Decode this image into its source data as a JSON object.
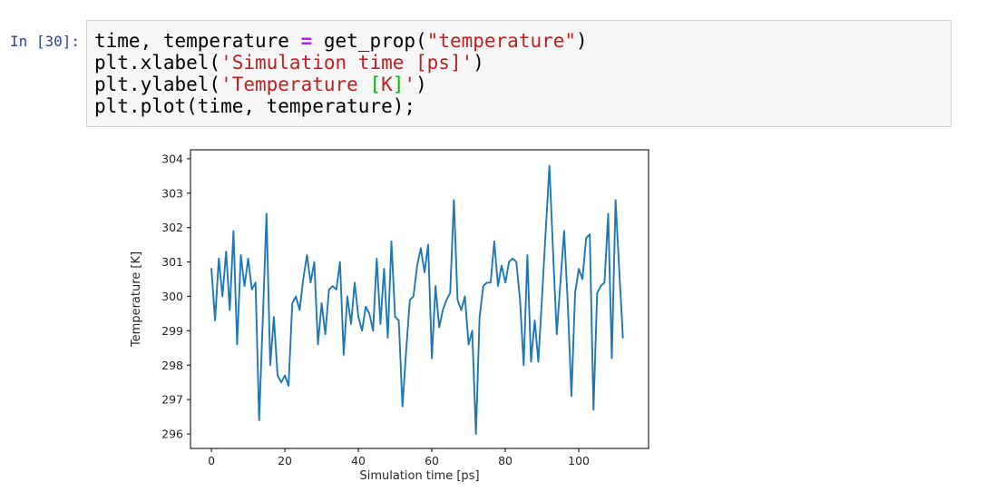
{
  "cell": {
    "prompt": "In [30]:",
    "prompt_color": "#303F9F",
    "editor_bg": "#f7f7f7",
    "editor_border": "#cfcfcf",
    "syntax_colors": {
      "plain": "#000000",
      "operator": "#AA22FF",
      "string": "#BA2121",
      "bracket": "#00bb00"
    },
    "code_lines": [
      [
        {
          "t": "time, temperature ",
          "c": "plain"
        },
        {
          "t": "=",
          "c": "operator"
        },
        {
          "t": " get_prop(",
          "c": "plain"
        },
        {
          "t": "\"temperature\"",
          "c": "string"
        },
        {
          "t": ")",
          "c": "plain"
        }
      ],
      [
        {
          "t": "plt.xlabel(",
          "c": "plain"
        },
        {
          "t": "'Simulation time [ps]'",
          "c": "string"
        },
        {
          "t": ")",
          "c": "plain"
        }
      ],
      [
        {
          "t": "plt.ylabel(",
          "c": "plain"
        },
        {
          "t": "'Temperature ",
          "c": "string"
        },
        {
          "t": "[",
          "c": "bracket"
        },
        {
          "t": "K",
          "c": "string"
        },
        {
          "t": "]",
          "c": "bracket"
        },
        {
          "t": "'",
          "c": "string"
        },
        {
          "t": ")",
          "c": "plain"
        }
      ],
      [
        {
          "t": "plt.plot(time, temperature);",
          "c": "plain"
        }
      ]
    ]
  },
  "chart_data": {
    "type": "line",
    "title": "",
    "xlabel": "Simulation time [ps]",
    "ylabel": "Temperature [K]",
    "legend": null,
    "grid": false,
    "line_color": "#1f77b4",
    "axis_color": "#262626",
    "xlim": [
      -5.7,
      119.0
    ],
    "ylim": [
      295.58,
      304.26
    ],
    "xticks": [
      0,
      20,
      40,
      60,
      80,
      100
    ],
    "yticks": [
      296,
      297,
      298,
      299,
      300,
      301,
      302,
      303,
      304
    ],
    "x": [
      0,
      1,
      2,
      3,
      4,
      5,
      6,
      7,
      8,
      9,
      10,
      11,
      12,
      13,
      14,
      15,
      16,
      17,
      18,
      19,
      20,
      21,
      22,
      23,
      24,
      25,
      26,
      27,
      28,
      29,
      30,
      31,
      32,
      33,
      34,
      35,
      36,
      37,
      38,
      39,
      40,
      41,
      42,
      43,
      44,
      45,
      46,
      47,
      48,
      49,
      50,
      51,
      52,
      53,
      54,
      55,
      56,
      57,
      58,
      59,
      60,
      61,
      62,
      63,
      64,
      65,
      66,
      67,
      68,
      69,
      70,
      71,
      72,
      73,
      74,
      75,
      76,
      77,
      78,
      79,
      80,
      81,
      82,
      83,
      84,
      85,
      86,
      87,
      88,
      89,
      90,
      91,
      92,
      93,
      94,
      95,
      96,
      97,
      98,
      99,
      100,
      101,
      102,
      103,
      104,
      105,
      106,
      107,
      108,
      109,
      110,
      111,
      112
    ],
    "series": [
      {
        "name": "temperature",
        "values": [
          300.8,
          299.3,
          301.1,
          300.0,
          301.3,
          299.6,
          301.9,
          298.6,
          301.2,
          300.3,
          301.1,
          300.2,
          300.4,
          296.4,
          299.4,
          302.4,
          298.0,
          299.4,
          297.7,
          297.5,
          297.7,
          297.4,
          299.8,
          300.0,
          299.6,
          300.5,
          301.2,
          300.4,
          301.0,
          298.6,
          299.8,
          298.9,
          300.2,
          300.3,
          300.2,
          301.0,
          298.3,
          300.0,
          299.2,
          300.4,
          299.4,
          299.0,
          299.7,
          299.5,
          299.0,
          301.1,
          299.2,
          300.8,
          298.8,
          301.6,
          299.4,
          299.3,
          296.8,
          298.4,
          299.9,
          300.0,
          300.9,
          301.4,
          300.7,
          301.5,
          298.2,
          300.3,
          299.1,
          299.6,
          299.9,
          300.1,
          302.8,
          299.9,
          299.6,
          300.0,
          298.6,
          299.0,
          296.0,
          299.4,
          300.3,
          300.4,
          300.4,
          301.6,
          300.3,
          300.9,
          300.4,
          301.0,
          301.1,
          301.0,
          299.9,
          298.0,
          301.2,
          298.1,
          299.3,
          298.1,
          300.0,
          301.9,
          303.8,
          301.3,
          298.9,
          300.4,
          301.9,
          299.8,
          297.1,
          300.1,
          300.8,
          300.5,
          301.7,
          301.8,
          296.7,
          300.1,
          300.3,
          300.4,
          302.4,
          298.2,
          302.8,
          300.8,
          298.8
        ]
      }
    ]
  }
}
